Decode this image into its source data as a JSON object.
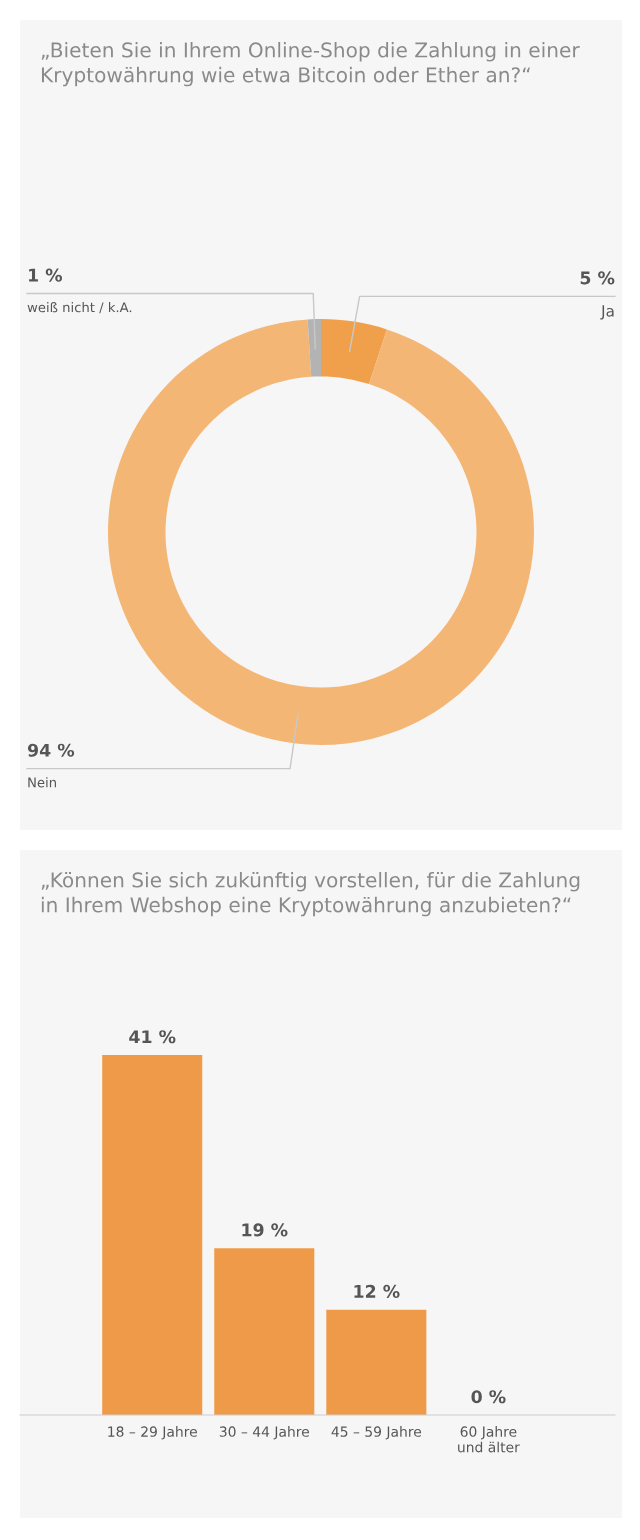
{
  "chart_data": [
    {
      "type": "donut",
      "title": "„Bieten Sie in Ihrem Online-Shop die Zahlung in einer\nKryptowährung wie etwa Bitcoin oder Ether an?“",
      "categories": [
        "Ja",
        "Nein",
        "weiß nicht / k.A."
      ],
      "values": [
        5,
        94,
        1
      ],
      "colors": [
        "#f0a04b",
        "#f4b675",
        "#b3b3b3"
      ],
      "value_labels": [
        "5 %",
        "94 %",
        "1 %"
      ]
    },
    {
      "type": "bar",
      "title": "„Können Sie sich zukünftig vorstellen, für die Zahlung\nin Ihrem Webshop eine Kryptowährung anzubieten?“",
      "categories": [
        "18 – 29 Jahre",
        "30 – 44 Jahre",
        "45 – 59 Jahre",
        "60 Jahre\nund älter"
      ],
      "values": [
        41,
        19,
        12,
        0
      ],
      "color": "#ee9a48",
      "value_labels": [
        "41 %",
        "19 %",
        "12 %",
        "0 %"
      ]
    }
  ]
}
